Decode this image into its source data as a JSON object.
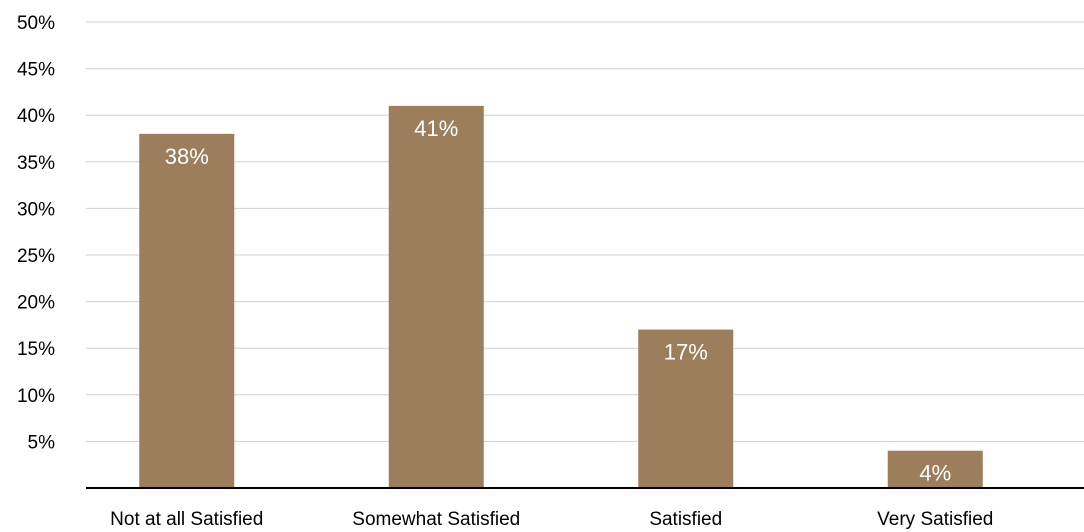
{
  "chart_data": {
    "type": "bar",
    "categories": [
      "Not at all Satisfied",
      "Somewhat Satisfied",
      "Satisfied",
      "Very Satisfied"
    ],
    "values": [
      38,
      41,
      17,
      4
    ],
    "data_labels": [
      "38%",
      "41%",
      "17%",
      "4%"
    ],
    "title": "",
    "xlabel": "",
    "ylabel": "",
    "ylim": [
      0,
      50
    ],
    "yticks": [
      5,
      10,
      15,
      20,
      25,
      30,
      35,
      40,
      45,
      50
    ],
    "ytick_labels": [
      "5%",
      "10%",
      "15%",
      "20%",
      "25%",
      "30%",
      "35%",
      "40%",
      "45%",
      "50%"
    ],
    "grid": true,
    "legend": "none",
    "bar_color": "#9C7D5C",
    "grid_color": "#D0D0D0",
    "axis_color": "#000000"
  }
}
